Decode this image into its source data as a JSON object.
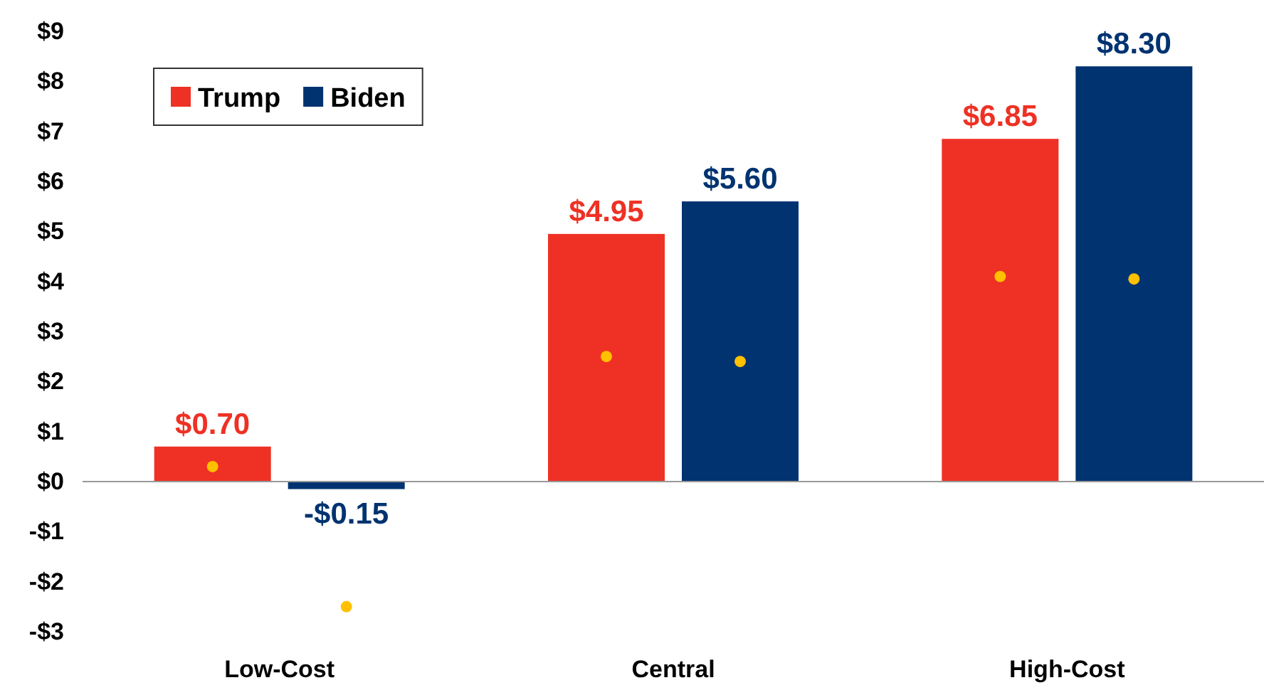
{
  "chart_data": {
    "type": "bar",
    "categories": [
      "Low-Cost",
      "Central",
      "High-Cost"
    ],
    "series": [
      {
        "name": "Trump",
        "color": "#ee3124",
        "values": [
          0.7,
          4.95,
          6.85
        ],
        "value_labels": [
          "$0.70",
          "$4.95",
          "$6.85"
        ]
      },
      {
        "name": "Biden",
        "color": "#003370",
        "values": [
          -0.15,
          5.6,
          8.3
        ],
        "value_labels": [
          "-$0.15",
          "$5.60",
          "$8.30"
        ]
      },
      {
        "type": "scatter",
        "color": "#ffc000",
        "x": [
          "Low-Cost",
          "Central",
          "High-Cost"
        ],
        "values": [
          0.3,
          2.5,
          4.1
        ]
      },
      {
        "type": "scatter",
        "color": "#ffc000",
        "x": [
          "Low-Cost",
          "Central",
          "High-Cost"
        ],
        "values": [
          -2.5,
          2.4,
          4.05
        ]
      }
    ],
    "ylim": [
      -3,
      9
    ],
    "yticks": [
      {
        "value": -3,
        "label": "-$3"
      },
      {
        "value": -2,
        "label": "-$2"
      },
      {
        "value": -1,
        "label": "-$1"
      },
      {
        "value": 0,
        "label": "$0"
      },
      {
        "value": 1,
        "label": "$1"
      },
      {
        "value": 2,
        "label": "$2"
      },
      {
        "value": 3,
        "label": "$3"
      },
      {
        "value": 4,
        "label": "$4"
      },
      {
        "value": 5,
        "label": "$5"
      },
      {
        "value": 6,
        "label": "$6"
      },
      {
        "value": 7,
        "label": "$7"
      },
      {
        "value": 8,
        "label": "$8"
      },
      {
        "value": 9,
        "label": "$9"
      }
    ],
    "legend": "top left",
    "marker": "circle"
  }
}
